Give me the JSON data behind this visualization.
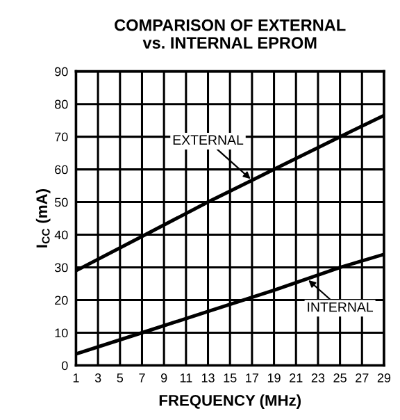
{
  "chart_data": {
    "type": "line",
    "title": "COMPARISON OF EXTERNAL\nvs. INTERNAL EPROM",
    "xlabel": "FREQUENCY (MHz)",
    "ylabel": "I$_{CC}$ (mA)",
    "x": [
      1,
      7,
      13,
      19,
      25,
      29
    ],
    "series": [
      {
        "name": "EXTERNAL",
        "color": "#000000",
        "values": [
          29,
          39.5,
          50,
          60,
          70,
          76.5
        ]
      },
      {
        "name": "INTERNAL",
        "color": "#000000",
        "values": [
          3.5,
          10,
          16.5,
          23,
          30,
          34
        ]
      }
    ],
    "xlim": [
      1,
      29
    ],
    "xticks": [
      1,
      3,
      5,
      7,
      9,
      11,
      13,
      15,
      17,
      19,
      21,
      23,
      25,
      27,
      29
    ],
    "ylim": [
      0,
      90
    ],
    "yticks": [
      0,
      10,
      20,
      30,
      40,
      50,
      60,
      70,
      80,
      90
    ],
    "grid": true,
    "marker": "none",
    "line_style": "solid"
  }
}
